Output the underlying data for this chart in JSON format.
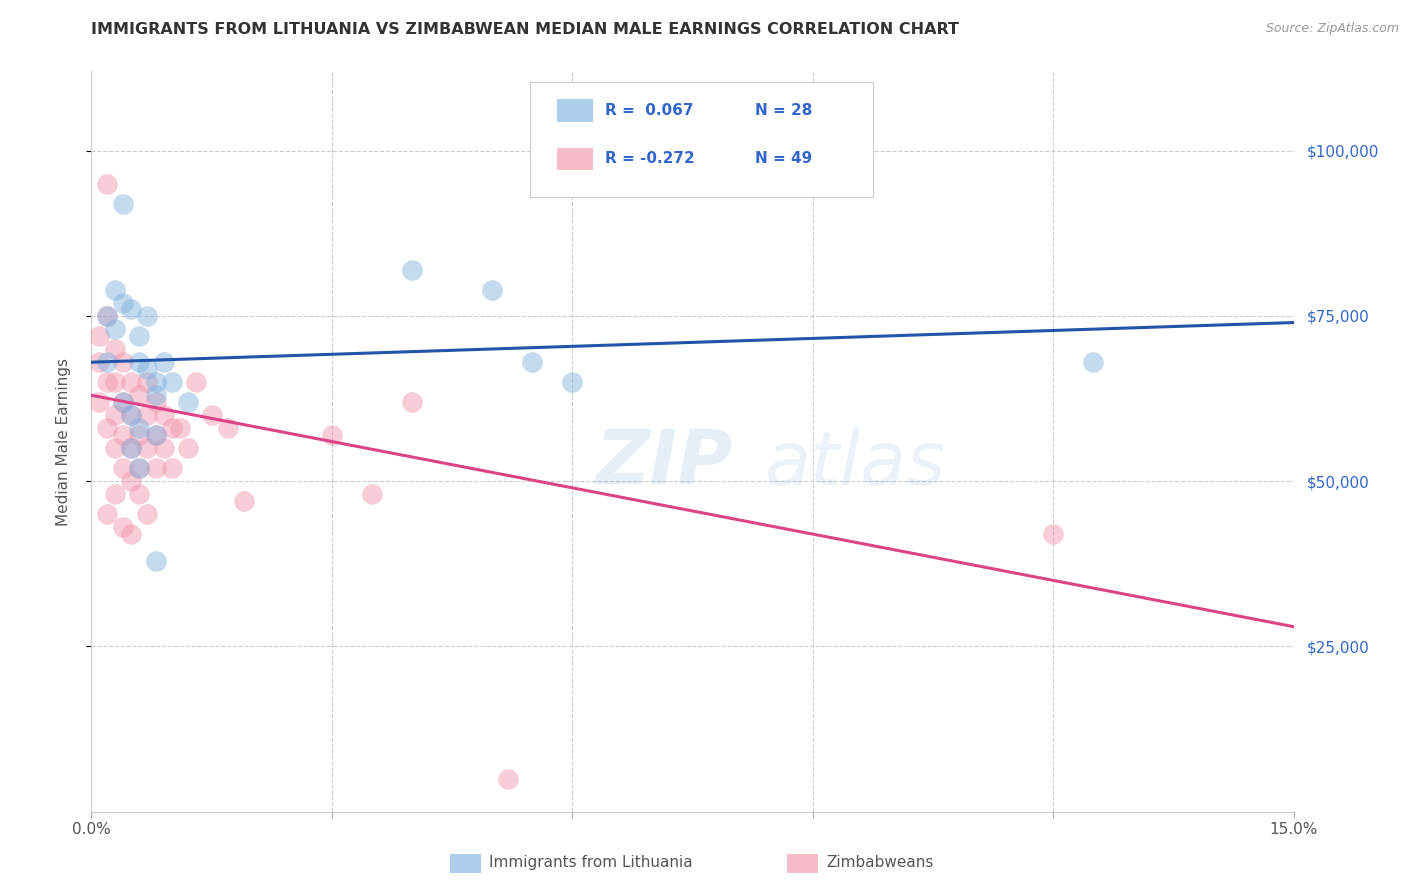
{
  "title": "IMMIGRANTS FROM LITHUANIA VS ZIMBABWEAN MEDIAN MALE EARNINGS CORRELATION CHART",
  "source": "Source: ZipAtlas.com",
  "ylabel": "Median Male Earnings",
  "xlim": [
    0,
    0.15
  ],
  "ylim": [
    0,
    112000
  ],
  "xticks": [
    0.0,
    0.03,
    0.06,
    0.09,
    0.12,
    0.15
  ],
  "xticklabels": [
    "0.0%",
    "",
    "",
    "",
    "",
    "15.0%"
  ],
  "right_yticks": [
    25000,
    50000,
    75000,
    100000
  ],
  "right_yticklabels": [
    "$25,000",
    "$50,000",
    "$75,000",
    "$100,000"
  ],
  "grid_color": "#cccccc",
  "background_color": "#ffffff",
  "blue_color": "#7aaedd",
  "pink_color": "#f090a8",
  "blue_line_color": "#2255aa",
  "pink_line_color": "#dd4488",
  "watermark_zip": "ZIP",
  "watermark_atlas": "atlas",
  "blue_line_x0": 0.0,
  "blue_line_y0": 68000,
  "blue_line_x1": 0.15,
  "blue_line_y1": 74000,
  "pink_line_x0": 0.0,
  "pink_line_y0": 63000,
  "pink_line_x1": 0.15,
  "pink_line_y1": 28000,
  "lithuania_x": [
    0.002,
    0.004,
    0.002,
    0.003,
    0.003,
    0.004,
    0.005,
    0.006,
    0.006,
    0.007,
    0.007,
    0.008,
    0.008,
    0.009,
    0.004,
    0.005,
    0.006,
    0.008,
    0.005,
    0.006,
    0.04,
    0.05,
    0.055,
    0.06,
    0.008,
    0.01,
    0.012,
    0.125
  ],
  "lithuania_y": [
    68000,
    92000,
    75000,
    79000,
    73000,
    77000,
    76000,
    72000,
    68000,
    75000,
    67000,
    65000,
    63000,
    68000,
    62000,
    60000,
    58000,
    57000,
    55000,
    52000,
    82000,
    79000,
    68000,
    65000,
    38000,
    65000,
    62000,
    68000
  ],
  "zimbabwe_x": [
    0.001,
    0.001,
    0.001,
    0.002,
    0.002,
    0.002,
    0.002,
    0.003,
    0.003,
    0.003,
    0.003,
    0.004,
    0.004,
    0.004,
    0.004,
    0.005,
    0.005,
    0.005,
    0.005,
    0.006,
    0.006,
    0.006,
    0.007,
    0.007,
    0.007,
    0.008,
    0.008,
    0.009,
    0.009,
    0.01,
    0.01,
    0.011,
    0.012,
    0.013,
    0.015,
    0.017,
    0.019,
    0.03,
    0.035,
    0.04,
    0.002,
    0.003,
    0.004,
    0.005,
    0.006,
    0.007,
    0.008,
    0.12,
    0.052
  ],
  "zimbabwe_y": [
    68000,
    72000,
    62000,
    95000,
    75000,
    65000,
    58000,
    70000,
    65000,
    60000,
    55000,
    68000,
    62000,
    57000,
    52000,
    65000,
    60000,
    55000,
    50000,
    63000,
    57000,
    52000,
    65000,
    60000,
    55000,
    62000,
    57000,
    60000,
    55000,
    58000,
    52000,
    58000,
    55000,
    65000,
    60000,
    58000,
    47000,
    57000,
    48000,
    62000,
    45000,
    48000,
    43000,
    42000,
    48000,
    45000,
    52000,
    42000,
    5000
  ]
}
